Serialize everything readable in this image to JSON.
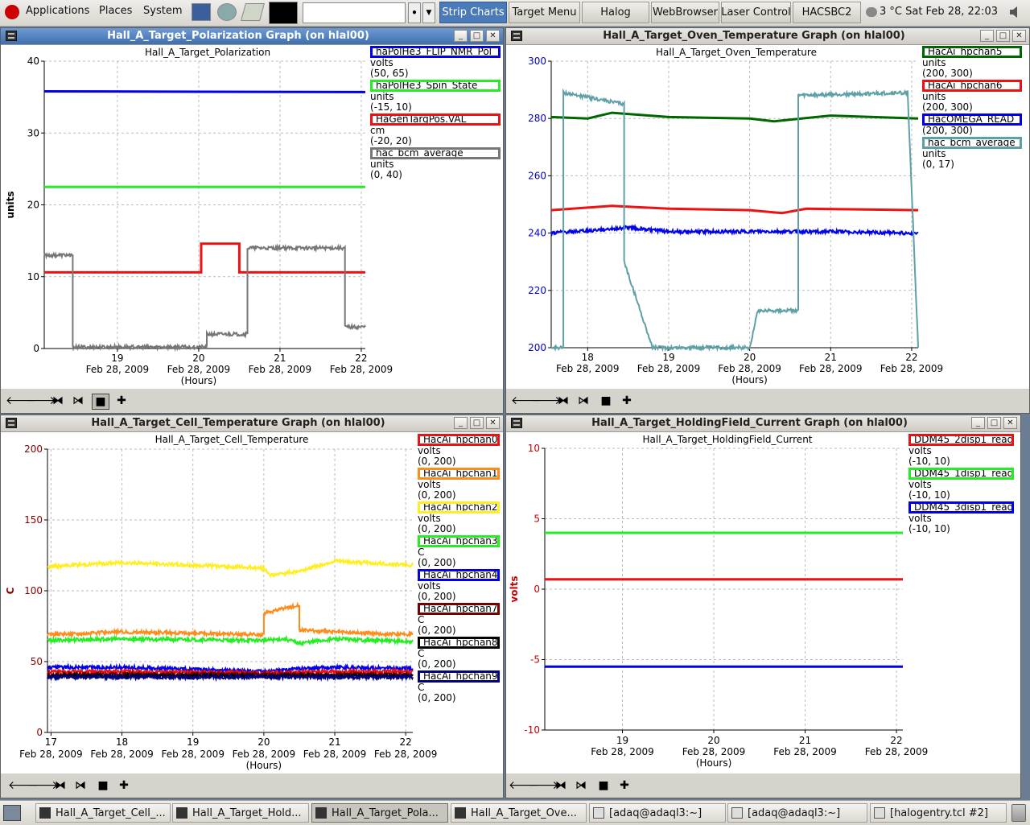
{
  "panel": {
    "menus": [
      "Applications",
      "Places",
      "System"
    ],
    "launchers": [
      "browser-icon",
      "network-icon",
      "calculator-icon",
      "terminal-monitor-icon"
    ],
    "buttons": [
      "Strip Charts",
      "Target Menu",
      "Halog",
      "WebBrowser",
      "Laser Control",
      "HACSBC2"
    ],
    "active_button": "Strip Charts",
    "clock": "3 °C Sat Feb 28, 22:03",
    "search_value": ""
  },
  "windows": {
    "pol": {
      "title": "Hall_A_Target_Polarization Graph (on hlal00)",
      "chart_title": "Hall_A_Target_Polarization",
      "legend": [
        {
          "name": "haPolHe3_FLIP_NMR_Pol",
          "unit": "volts",
          "range": "(50, 65)",
          "color": "#0000ee"
        },
        {
          "name": "haPolHe3_Spin_State",
          "unit": "units",
          "range": "(-15, 10)",
          "color": "#22ee22"
        },
        {
          "name": "HaGenTargPos.VAL",
          "unit": "cm",
          "range": "(-20, 20)",
          "color": "#ee1111"
        },
        {
          "name": "hac_bcm_average",
          "unit": "units",
          "range": "(0, 40)",
          "color": "#777777"
        }
      ]
    },
    "oven": {
      "title": "Hall_A_Target_Oven_Temperature Graph (on hlal00)",
      "chart_title": "Hall_A_Target_Oven_Temperature",
      "legend": [
        {
          "name": "HacAi_hpchan5",
          "unit": "units",
          "range": "(200, 300)",
          "color": "#006600"
        },
        {
          "name": "HacAi_hpchan6",
          "unit": "units",
          "range": "(200, 300)",
          "color": "#ee1111"
        },
        {
          "name": "HacOMEGA_READ",
          "unit": "",
          "range": "(200, 300)",
          "color": "#0000ee"
        },
        {
          "name": "hac_bcm_average",
          "unit": "units",
          "range": "(0, 17)",
          "color": "#5fa0a6"
        }
      ]
    },
    "cell": {
      "title": "Hall_A_Target_Cell_Temperature Graph (on hlal00)",
      "chart_title": "Hall_A_Target_Cell_Temperature",
      "legend": [
        {
          "name": "HacAi_hpchan0",
          "unit": "volts",
          "range": "(0, 200)",
          "color": "#ee1111"
        },
        {
          "name": "HacAi_hpchan1",
          "unit": "volts",
          "range": "(0, 200)",
          "color": "#ff8c1a"
        },
        {
          "name": "HacAi_hpchan2",
          "unit": "volts",
          "range": "(0, 200)",
          "color": "#ffee22"
        },
        {
          "name": "HacAi_hpchan3",
          "unit": "C",
          "range": "(0, 200)",
          "color": "#22ee22"
        },
        {
          "name": "HacAi_hpchan4",
          "unit": "volts",
          "range": "(0, 200)",
          "color": "#0000ee"
        },
        {
          "name": "HacAi_hpchan7",
          "unit": "C",
          "range": "(0, 200)",
          "color": "#7a0000"
        },
        {
          "name": "HacAi_hpchan8",
          "unit": "C",
          "range": "(0, 200)",
          "color": "#000000"
        },
        {
          "name": "HacAi_hpchan9",
          "unit": "C",
          "range": "(0, 200)",
          "color": "#000080"
        }
      ]
    },
    "hold": {
      "title": "Hall_A_Target_HoldingField_Current Graph (on hlal00)",
      "chart_title": "Hall_A_Target_HoldingField_Current",
      "legend": [
        {
          "name": "DDM45_2disp1_read",
          "unit": "volts",
          "range": "(-10, 10)",
          "color": "#ee1111"
        },
        {
          "name": "DDM45_1disp1_read",
          "unit": "volts",
          "range": "(-10, 10)",
          "color": "#22ee22"
        },
        {
          "name": "DDM45_3disp1_read",
          "unit": "volts",
          "range": "(-10, 10)",
          "color": "#0000ee"
        }
      ]
    }
  },
  "toolbar_icons": [
    "scroll-left-icon",
    "scroll-right-icon",
    "zoom-in-x-icon",
    "zoom-out-x-icon",
    "crosshair-icon",
    "add-icon"
  ],
  "taskbar": {
    "tasks": [
      {
        "label": "Hall_A_Target_Cell_...",
        "kind": "app"
      },
      {
        "label": "Hall_A_Target_Hold...",
        "kind": "app"
      },
      {
        "label": "Hall_A_Target_Pola...",
        "kind": "app",
        "active": true
      },
      {
        "label": "Hall_A_Target_Ove...",
        "kind": "app"
      },
      {
        "label": "[adaq@adaql3:~]",
        "kind": "term"
      },
      {
        "label": "[adaq@adaql3:~]",
        "kind": "term"
      },
      {
        "label": "[halogentry.tcl #2]",
        "kind": "term"
      }
    ]
  },
  "chart_data": [
    {
      "id": "pol",
      "type": "line",
      "title": "Hall_A_Target_Polarization",
      "xlabel": "(Hours)",
      "ylabel": "units",
      "xlim": [
        18.1,
        22.05
      ],
      "ylim": [
        0,
        40
      ],
      "yticks": [
        0,
        10,
        20,
        30,
        40
      ],
      "xticks": [
        19,
        20,
        21,
        22
      ],
      "xtick_labels": [
        "19",
        "20",
        "21",
        "22"
      ],
      "xtick_date": "Feb 28, 2009",
      "grid": true,
      "series": [
        {
          "name": "haPolHe3_FLIP_NMR_Pol",
          "color": "#0000ee",
          "points": [
            [
              18.1,
              35.8
            ],
            [
              22.05,
              35.7
            ]
          ]
        },
        {
          "name": "haPolHe3_Spin_State",
          "color": "#22ee22",
          "points": [
            [
              18.1,
              22.5
            ],
            [
              22.05,
              22.5
            ]
          ]
        },
        {
          "name": "HaGenTargPos.VAL",
          "color": "#ee1111",
          "points": [
            [
              18.1,
              10.6
            ],
            [
              20.03,
              10.6
            ],
            [
              20.03,
              14.6
            ],
            [
              20.5,
              14.6
            ],
            [
              20.5,
              10.6
            ],
            [
              22.05,
              10.6
            ]
          ]
        },
        {
          "name": "hac_bcm_average",
          "color": "#777777",
          "kind": "noisy",
          "points": [
            [
              18.1,
              13
            ],
            [
              18.45,
              13
            ],
            [
              18.45,
              0.2
            ],
            [
              20.1,
              0.2
            ],
            [
              20.1,
              2
            ],
            [
              20.6,
              2
            ],
            [
              20.6,
              14
            ],
            [
              21.8,
              14
            ],
            [
              21.8,
              3
            ],
            [
              22.05,
              3
            ]
          ]
        }
      ]
    },
    {
      "id": "oven",
      "type": "line",
      "title": "Hall_A_Target_Oven_Temperature",
      "xlabel": "(Hours)",
      "ylabel": "",
      "xlim": [
        17.55,
        22.08
      ],
      "ylim": [
        200,
        300
      ],
      "yticks": [
        200,
        220,
        240,
        260,
        280,
        300
      ],
      "xticks": [
        18,
        19,
        20,
        21,
        22
      ],
      "xtick_labels": [
        "18",
        "19",
        "20",
        "21",
        "22"
      ],
      "xtick_date": "Feb 28, 2009",
      "grid": true,
      "series": [
        {
          "name": "HacAi_hpchan5",
          "color": "#006600",
          "points": [
            [
              17.55,
              280.5
            ],
            [
              18.0,
              280
            ],
            [
              18.3,
              282
            ],
            [
              19.0,
              280.5
            ],
            [
              20.0,
              280
            ],
            [
              20.3,
              279
            ],
            [
              21.0,
              281
            ],
            [
              22.08,
              280
            ]
          ]
        },
        {
          "name": "HacAi_hpchan6",
          "color": "#ee1111",
          "points": [
            [
              17.55,
              248
            ],
            [
              18.3,
              249.5
            ],
            [
              19.0,
              248.5
            ],
            [
              20.0,
              248
            ],
            [
              20.4,
              247
            ],
            [
              20.7,
              248.5
            ],
            [
              22.08,
              248
            ]
          ]
        },
        {
          "name": "HacOMEGA_READ",
          "color": "#0000ee",
          "kind": "noisy",
          "points": [
            [
              17.55,
              240
            ],
            [
              18.1,
              241
            ],
            [
              18.5,
              242
            ],
            [
              19.0,
              240.5
            ],
            [
              20.0,
              240.5
            ],
            [
              21.0,
              240.5
            ],
            [
              22.08,
              240
            ]
          ]
        },
        {
          "name": "hac_bcm_average",
          "color": "#5fa0a6",
          "kind": "noisy",
          "points": [
            [
              17.55,
              200
            ],
            [
              17.7,
              200
            ],
            [
              17.7,
              289
            ],
            [
              18.45,
              285
            ],
            [
              18.45,
              230
            ],
            [
              18.8,
              200
            ],
            [
              20.0,
              200
            ],
            [
              20.1,
              213
            ],
            [
              20.6,
              213
            ],
            [
              20.6,
              288
            ],
            [
              21.95,
              289
            ],
            [
              22.08,
              200
            ]
          ]
        }
      ]
    },
    {
      "id": "cell",
      "type": "line",
      "title": "Hall_A_Target_Cell_Temperature",
      "xlabel": "(Hours)",
      "ylabel": "C",
      "xlim": [
        16.95,
        22.1
      ],
      "ylim": [
        0,
        200
      ],
      "yticks": [
        0,
        50,
        100,
        150,
        200
      ],
      "xticks": [
        17,
        18,
        19,
        20,
        21,
        22
      ],
      "xtick_labels": [
        "17",
        "18",
        "19",
        "20",
        "21",
        "22"
      ],
      "xtick_date": "Feb 28, 2009",
      "grid": true,
      "series": [
        {
          "name": "HacAi_hpchan2",
          "color": "#ffee22",
          "kind": "noisy",
          "points": [
            [
              16.95,
              117
            ],
            [
              18.0,
              120
            ],
            [
              19.0,
              118
            ],
            [
              20.0,
              116
            ],
            [
              20.1,
              111
            ],
            [
              20.5,
              114
            ],
            [
              21.0,
              121
            ],
            [
              22.1,
              118
            ]
          ]
        },
        {
          "name": "HacAi_hpchan1",
          "color": "#ff8c1a",
          "kind": "noisy",
          "points": [
            [
              16.95,
              69
            ],
            [
              18.0,
              71
            ],
            [
              20.0,
              69
            ],
            [
              20.0,
              84
            ],
            [
              20.5,
              90
            ],
            [
              20.5,
              72
            ],
            [
              21.0,
              71
            ],
            [
              22.1,
              69
            ]
          ]
        },
        {
          "name": "HacAi_hpchan3",
          "color": "#22ee22",
          "kind": "noisy",
          "points": [
            [
              16.95,
              65
            ],
            [
              18.0,
              66
            ],
            [
              20.0,
              65
            ],
            [
              20.3,
              66
            ],
            [
              20.5,
              63
            ],
            [
              21.0,
              66
            ],
            [
              22.1,
              64
            ]
          ]
        },
        {
          "name": "HacAi_hpchan4",
          "color": "#0000ee",
          "kind": "noisy",
          "points": [
            [
              16.95,
              46
            ],
            [
              18.0,
              46
            ],
            [
              20.0,
              43
            ],
            [
              20.5,
              45
            ],
            [
              21.0,
              46
            ],
            [
              22.1,
              45
            ]
          ]
        },
        {
          "name": "HacAi_hpchan0",
          "color": "#ee1111",
          "kind": "noisy",
          "points": [
            [
              16.95,
              43
            ],
            [
              18.0,
              43
            ],
            [
              20.0,
              42
            ],
            [
              21.0,
              43
            ],
            [
              22.1,
              43
            ]
          ]
        },
        {
          "name": "HacAi_hpchan7",
          "color": "#7a0000",
          "kind": "noisy",
          "points": [
            [
              16.95,
              41
            ],
            [
              22.1,
              41
            ]
          ]
        },
        {
          "name": "HacAi_hpchan8",
          "color": "#000000",
          "kind": "noisy",
          "points": [
            [
              16.95,
              40
            ],
            [
              22.1,
              40
            ]
          ]
        },
        {
          "name": "HacAi_hpchan9",
          "color": "#000080",
          "kind": "noisy",
          "points": [
            [
              16.95,
              39
            ],
            [
              22.1,
              39
            ]
          ]
        }
      ]
    },
    {
      "id": "hold",
      "type": "line",
      "title": "Hall_A_Target_HoldingField_Current",
      "xlabel": "(Hours)",
      "ylabel": "volts",
      "xlim": [
        18.15,
        22.07
      ],
      "ylim": [
        -10,
        10
      ],
      "yticks": [
        -10,
        -5,
        0,
        5,
        10
      ],
      "xticks": [
        19,
        20,
        21,
        22
      ],
      "xtick_labels": [
        "19",
        "20",
        "21",
        "22"
      ],
      "xtick_date": "Feb 28, 2009",
      "grid": true,
      "series": [
        {
          "name": "DDM45_1disp1_read",
          "color": "#22ee22",
          "points": [
            [
              18.15,
              4.0
            ],
            [
              22.07,
              4.0
            ]
          ]
        },
        {
          "name": "DDM45_2disp1_read",
          "color": "#ee1111",
          "points": [
            [
              18.15,
              0.7
            ],
            [
              22.07,
              0.7
            ]
          ]
        },
        {
          "name": "DDM45_3disp1_read",
          "color": "#0000ee",
          "points": [
            [
              18.15,
              -5.5
            ],
            [
              22.07,
              -5.5
            ]
          ]
        }
      ]
    }
  ]
}
